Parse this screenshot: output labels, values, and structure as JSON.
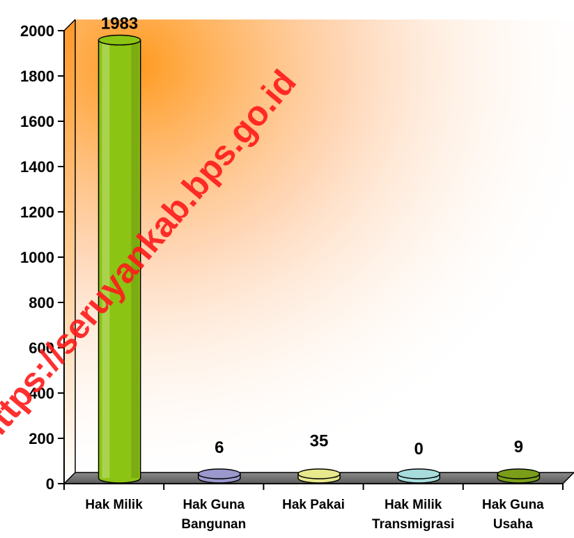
{
  "chart_data": {
    "type": "bar",
    "title": "",
    "xlabel": "",
    "ylabel": "",
    "categories": [
      [
        "Hak Milik"
      ],
      [
        "Hak Guna",
        "Bangunan"
      ],
      [
        "Hak Pakai"
      ],
      [
        "Hak Milik",
        "Transmigrasi"
      ],
      [
        "Hak Guna",
        "Usaha"
      ]
    ],
    "values": [
      1983,
      6,
      35,
      0,
      9
    ],
    "value_labels": [
      "1983",
      "6",
      "35",
      "0",
      "9"
    ],
    "bar_colors": [
      "#8cc414",
      "#9a98cc",
      "#e8e88c",
      "#a8dcdc",
      "#7a9e1a"
    ],
    "ylim": [
      0,
      2000
    ],
    "yticks": [
      "0",
      "200",
      "400",
      "600",
      "800",
      "1000",
      "1200",
      "1400",
      "1600",
      "1800",
      "2000"
    ],
    "grid": false,
    "legend": "none",
    "watermark": "https://seruyankab.bps.go.id"
  }
}
